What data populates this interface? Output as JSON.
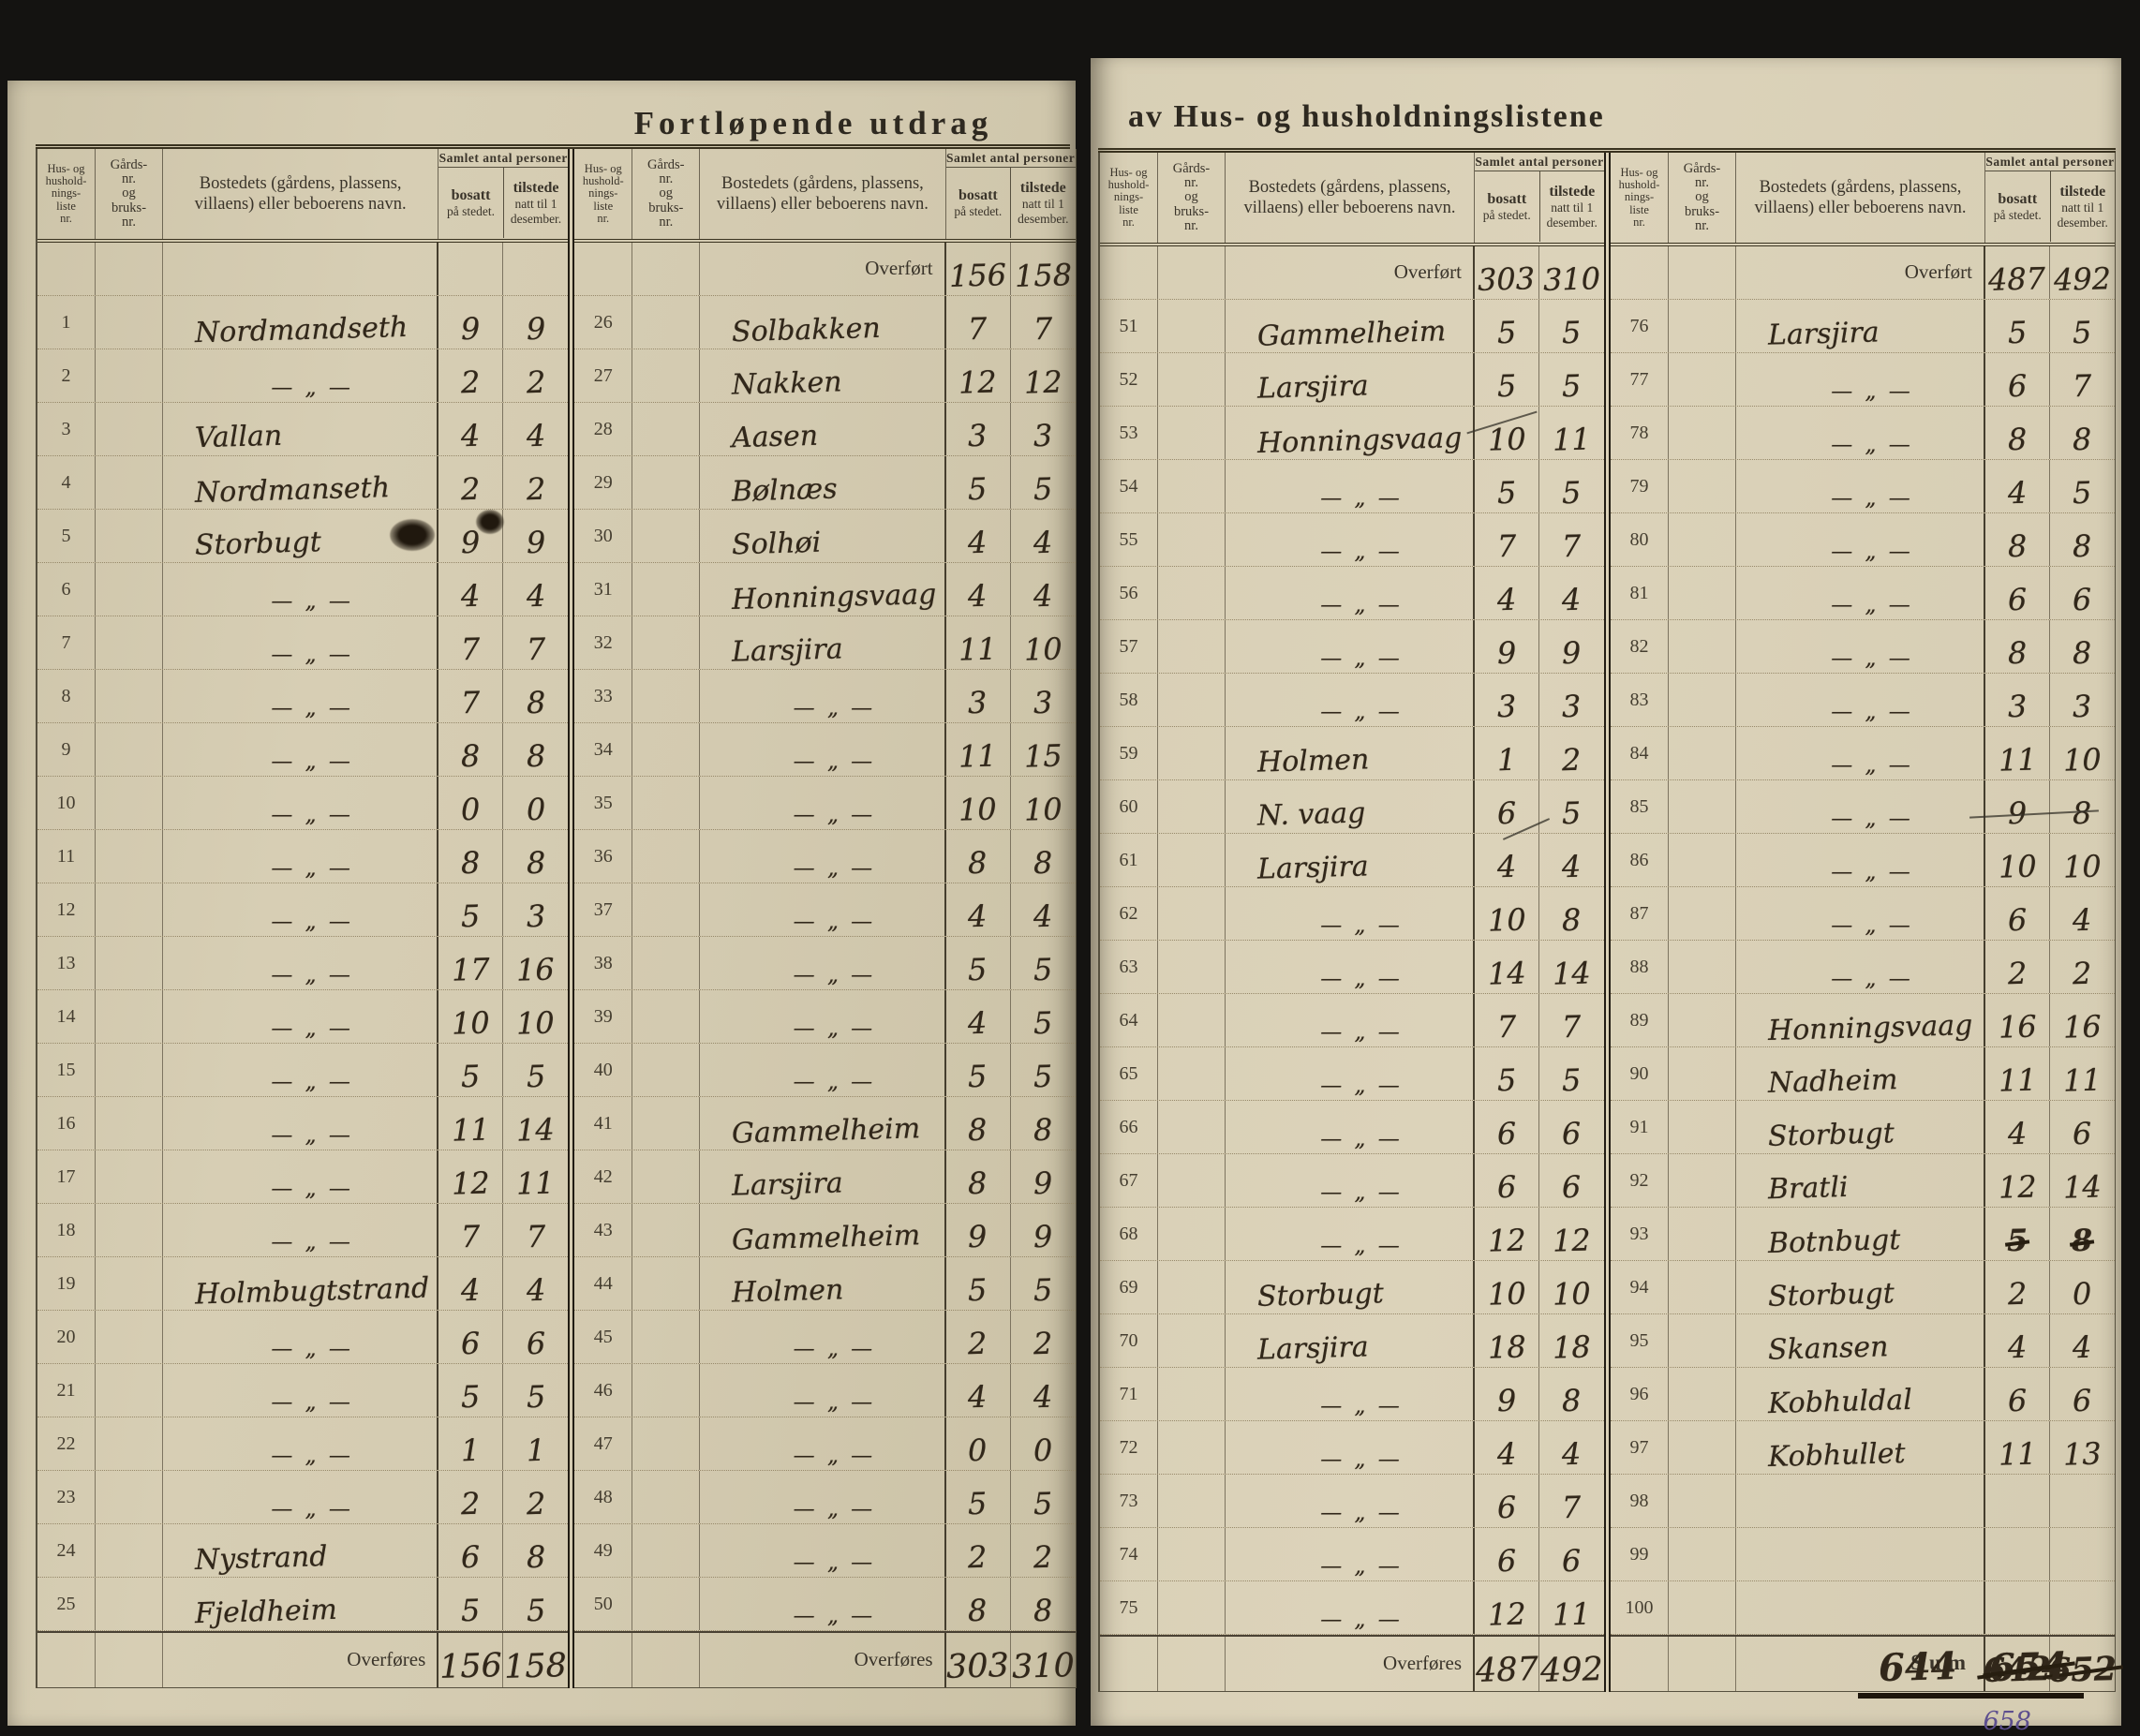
{
  "document": {
    "title_left": "Fortløpende utdrag",
    "title_right": "av Hus- og husholdningslistene"
  },
  "colors": {
    "paper": "#d5ccb2",
    "ink": "#31271a",
    "print": "#3a342a",
    "correction_purple": "#5d4f8e"
  },
  "headers": {
    "list_nr_lines": [
      "Hus- og",
      "hushold-",
      "nings-",
      "liste",
      "nr."
    ],
    "farm_nr_lines": [
      "Gårds-",
      "nr.",
      "og",
      "bruks-",
      "nr."
    ],
    "name": "Bostedets (gårdens, plassens, villaens) eller beboerens navn.",
    "group": "Samlet antal personer",
    "bosatt_bold": "bosatt",
    "bosatt_rest": "på stedet.",
    "tilstede_bold": "tilstede",
    "tilstede_rest": "natt til 1 desember."
  },
  "labels": {
    "carry_in": "Overført",
    "carry_out": "Overføres",
    "sum": "Sum"
  },
  "ditto_mark": "— „ —",
  "panels": [
    {
      "carry_in": null,
      "rows": [
        {
          "nr": "1",
          "name": "Nordmandseth",
          "b": "9",
          "t": "9"
        },
        {
          "nr": "2",
          "d": true,
          "b": "2",
          "t": "2"
        },
        {
          "nr": "3",
          "name": "Vallan",
          "b": "4",
          "t": "4"
        },
        {
          "nr": "4",
          "name": "Nordmanseth",
          "b": "2",
          "t": "2"
        },
        {
          "nr": "5",
          "name": "Storbugt",
          "b": "9",
          "t": "9"
        },
        {
          "nr": "6",
          "d": true,
          "b": "4",
          "t": "4"
        },
        {
          "nr": "7",
          "d": true,
          "b": "7",
          "t": "7"
        },
        {
          "nr": "8",
          "d": true,
          "b": "7",
          "t": "8"
        },
        {
          "nr": "9",
          "d": true,
          "b": "8",
          "t": "8"
        },
        {
          "nr": "10",
          "d": true,
          "b": "0",
          "t": "0"
        },
        {
          "nr": "11",
          "d": true,
          "b": "8",
          "t": "8"
        },
        {
          "nr": "12",
          "d": true,
          "b": "5",
          "t": "3"
        },
        {
          "nr": "13",
          "d": true,
          "b": "17",
          "t": "16"
        },
        {
          "nr": "14",
          "d": true,
          "b": "10",
          "t": "10"
        },
        {
          "nr": "15",
          "d": true,
          "b": "5",
          "t": "5"
        },
        {
          "nr": "16",
          "d": true,
          "b": "11",
          "t": "14"
        },
        {
          "nr": "17",
          "d": true,
          "b": "12",
          "t": "11"
        },
        {
          "nr": "18",
          "d": true,
          "b": "7",
          "t": "7"
        },
        {
          "nr": "19",
          "name": "Holmbugtstrand",
          "b": "4",
          "t": "4"
        },
        {
          "nr": "20",
          "d": true,
          "b": "6",
          "t": "6"
        },
        {
          "nr": "21",
          "d": true,
          "b": "5",
          "t": "5"
        },
        {
          "nr": "22",
          "d": true,
          "b": "1",
          "t": "1"
        },
        {
          "nr": "23",
          "d": true,
          "b": "2",
          "t": "2"
        },
        {
          "nr": "24",
          "name": "Nystrand",
          "b": "6",
          "t": "8"
        },
        {
          "nr": "25",
          "name": "Fjeldheim",
          "b": "5",
          "t": "5"
        }
      ],
      "total": {
        "label": "Overføres",
        "b": "156",
        "t": "158"
      }
    },
    {
      "carry_in": {
        "label": "Overført",
        "b": "156",
        "t": "158"
      },
      "rows": [
        {
          "nr": "26",
          "name": "Solbakken",
          "b": "7",
          "t": "7"
        },
        {
          "nr": "27",
          "name": "Nakken",
          "b": "12",
          "t": "12"
        },
        {
          "nr": "28",
          "name": "Aasen",
          "b": "3",
          "t": "3"
        },
        {
          "nr": "29",
          "name": "Bølnæs",
          "b": "5",
          "t": "5"
        },
        {
          "nr": "30",
          "name": "Solhøi",
          "b": "4",
          "t": "4"
        },
        {
          "nr": "31",
          "name": "Honningsvaag",
          "b": "4",
          "t": "4"
        },
        {
          "nr": "32",
          "name": "Larsjira",
          "b": "11",
          "t": "10"
        },
        {
          "nr": "33",
          "d": true,
          "b": "3",
          "t": "3"
        },
        {
          "nr": "34",
          "d": true,
          "b": "11",
          "t": "15"
        },
        {
          "nr": "35",
          "d": true,
          "b": "10",
          "t": "10"
        },
        {
          "nr": "36",
          "d": true,
          "b": "8",
          "t": "8"
        },
        {
          "nr": "37",
          "d": true,
          "b": "4",
          "t": "4"
        },
        {
          "nr": "38",
          "d": true,
          "b": "5",
          "t": "5"
        },
        {
          "nr": "39",
          "d": true,
          "b": "4",
          "t": "5"
        },
        {
          "nr": "40",
          "d": true,
          "b": "5",
          "t": "5"
        },
        {
          "nr": "41",
          "name": "Gammelheim",
          "b": "8",
          "t": "8"
        },
        {
          "nr": "42",
          "name": "Larsjira",
          "b": "8",
          "t": "9"
        },
        {
          "nr": "43",
          "name": "Gammelheim",
          "b": "9",
          "t": "9"
        },
        {
          "nr": "44",
          "name": "Holmen",
          "b": "5",
          "t": "5"
        },
        {
          "nr": "45",
          "d": true,
          "b": "2",
          "t": "2"
        },
        {
          "nr": "46",
          "d": true,
          "b": "4",
          "t": "4"
        },
        {
          "nr": "47",
          "d": true,
          "b": "0",
          "t": "0"
        },
        {
          "nr": "48",
          "d": true,
          "b": "5",
          "t": "5"
        },
        {
          "nr": "49",
          "d": true,
          "b": "2",
          "t": "2"
        },
        {
          "nr": "50",
          "d": true,
          "b": "8",
          "t": "8"
        }
      ],
      "total": {
        "label": "Overføres",
        "b": "303",
        "t": "310"
      }
    },
    {
      "carry_in": {
        "label": "Overført",
        "b": "303",
        "t": "310"
      },
      "rows": [
        {
          "nr": "51",
          "name": "Gammelheim",
          "b": "5",
          "t": "5"
        },
        {
          "nr": "52",
          "name": "Larsjira",
          "b": "5",
          "t": "5"
        },
        {
          "nr": "53",
          "name": "Honningsvaag",
          "b": "10",
          "t": "11"
        },
        {
          "nr": "54",
          "d": true,
          "b": "5",
          "t": "5"
        },
        {
          "nr": "55",
          "d": true,
          "b": "7",
          "t": "7"
        },
        {
          "nr": "56",
          "d": true,
          "b": "4",
          "t": "4"
        },
        {
          "nr": "57",
          "d": true,
          "b": "9",
          "t": "9"
        },
        {
          "nr": "58",
          "d": true,
          "b": "3",
          "t": "3"
        },
        {
          "nr": "59",
          "name": "Holmen",
          "b": "1",
          "t": "2"
        },
        {
          "nr": "60",
          "name": "N. vaag",
          "b": "6",
          "t": "5"
        },
        {
          "nr": "61",
          "name": "Larsjira",
          "b": "4",
          "t": "4"
        },
        {
          "nr": "62",
          "d": true,
          "b": "10",
          "t": "8"
        },
        {
          "nr": "63",
          "d": true,
          "b": "14",
          "t": "14"
        },
        {
          "nr": "64",
          "d": true,
          "b": "7",
          "t": "7"
        },
        {
          "nr": "65",
          "d": true,
          "b": "5",
          "t": "5"
        },
        {
          "nr": "66",
          "d": true,
          "b": "6",
          "t": "6"
        },
        {
          "nr": "67",
          "d": true,
          "b": "6",
          "t": "6"
        },
        {
          "nr": "68",
          "d": true,
          "b": "12",
          "t": "12"
        },
        {
          "nr": "69",
          "name": "Storbugt",
          "b": "10",
          "t": "10"
        },
        {
          "nr": "70",
          "name": "Larsjira",
          "b": "18",
          "t": "18"
        },
        {
          "nr": "71",
          "d": true,
          "b": "9",
          "t": "8"
        },
        {
          "nr": "72",
          "d": true,
          "b": "4",
          "t": "4"
        },
        {
          "nr": "73",
          "d": true,
          "b": "6",
          "t": "7"
        },
        {
          "nr": "74",
          "d": true,
          "b": "6",
          "t": "6"
        },
        {
          "nr": "75",
          "d": true,
          "b": "12",
          "t": "11"
        }
      ],
      "total": {
        "label": "Overføres",
        "b": "487",
        "t": "492"
      }
    },
    {
      "carry_in": {
        "label": "Overført",
        "b": "487",
        "t": "492"
      },
      "rows": [
        {
          "nr": "76",
          "name": "Larsjira",
          "b": "5",
          "t": "5"
        },
        {
          "nr": "77",
          "d": true,
          "b": "6",
          "t": "7"
        },
        {
          "nr": "78",
          "d": true,
          "b": "8",
          "t": "8"
        },
        {
          "nr": "79",
          "d": true,
          "b": "4",
          "t": "5"
        },
        {
          "nr": "80",
          "d": true,
          "b": "8",
          "t": "8"
        },
        {
          "nr": "81",
          "d": true,
          "b": "6",
          "t": "6"
        },
        {
          "nr": "82",
          "d": true,
          "b": "8",
          "t": "8"
        },
        {
          "nr": "83",
          "d": true,
          "b": "3",
          "t": "3"
        },
        {
          "nr": "84",
          "d": true,
          "b": "11",
          "t": "10"
        },
        {
          "nr": "85",
          "d": true,
          "b": "9",
          "t": "8"
        },
        {
          "nr": "86",
          "d": true,
          "b": "10",
          "t": "10"
        },
        {
          "nr": "87",
          "d": true,
          "b": "6",
          "t": "4"
        },
        {
          "nr": "88",
          "d": true,
          "b": "2",
          "t": "2"
        },
        {
          "nr": "89",
          "name": "Honningsvaag",
          "b": "16",
          "t": "16"
        },
        {
          "nr": "90",
          "name": "Nadheim",
          "b": "11",
          "t": "11"
        },
        {
          "nr": "91",
          "name": "Storbugt",
          "b": "4",
          "t": "6"
        },
        {
          "nr": "92",
          "name": "Bratli",
          "b": "12",
          "t": "14"
        },
        {
          "nr": "93",
          "name": "Botnbugt",
          "b": "5",
          "t": "8",
          "struck": true
        },
        {
          "nr": "94",
          "name": "Storbugt",
          "b": "2",
          "t": "0"
        },
        {
          "nr": "95",
          "name": "Skansen",
          "b": "4",
          "t": "4"
        },
        {
          "nr": "96",
          "name": "Kobhuldal",
          "b": "6",
          "t": "6"
        },
        {
          "nr": "97",
          "name": "Kobhullet",
          "b": "11",
          "t": "13"
        },
        {
          "nr": "98"
        },
        {
          "nr": "99"
        },
        {
          "nr": "100"
        }
      ],
      "total": {
        "label": "Sum",
        "b": "642",
        "t": "652",
        "struck": true
      },
      "sum_extra": {
        "bosatt": "644",
        "tilstede": "654",
        "correction": "658"
      }
    }
  ]
}
